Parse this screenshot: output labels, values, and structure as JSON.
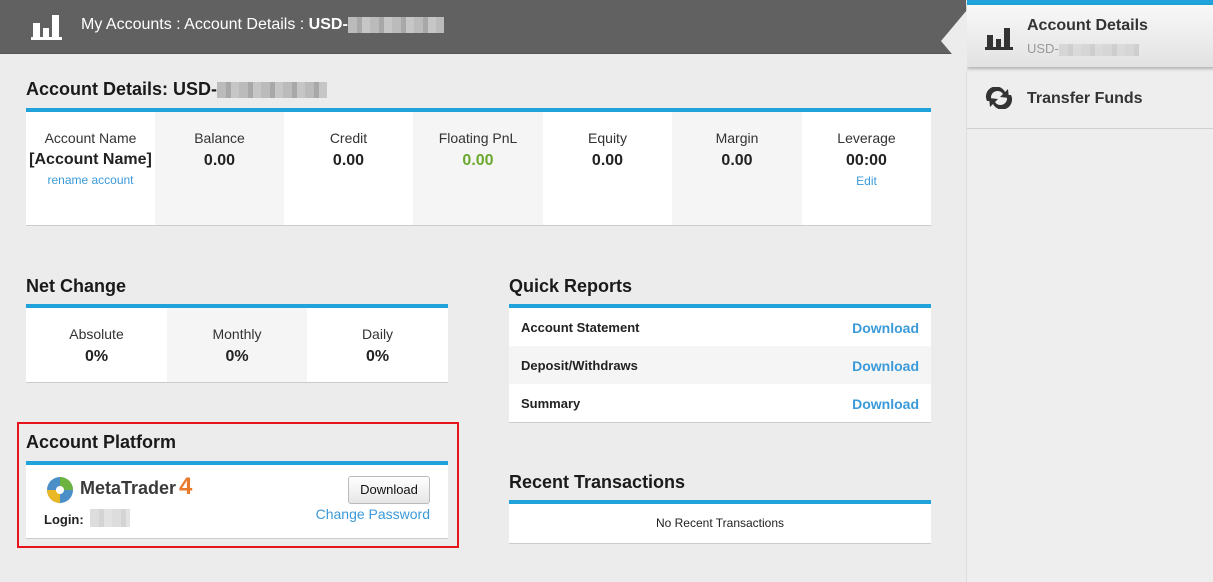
{
  "header": {
    "crumb_prefix": "My Accounts : Account Details : ",
    "crumb_account": "USD-"
  },
  "sidebar": {
    "items": [
      {
        "label": "Account Details",
        "sub": "USD-",
        "icon": "bar-chart-icon",
        "active": true
      },
      {
        "label": "Transfer Funds",
        "icon": "transfer-icon"
      }
    ]
  },
  "account": {
    "title": "Account Details: USD-",
    "stats": [
      {
        "label": "Account Name",
        "value": "[Account Name]",
        "link": "rename account"
      },
      {
        "label": "Balance",
        "value": "0.00"
      },
      {
        "label": "Credit",
        "value": "0.00"
      },
      {
        "label": "Floating PnL",
        "value": "0.00"
      },
      {
        "label": "Equity",
        "value": "0.00"
      },
      {
        "label": "Margin",
        "value": "0.00"
      },
      {
        "label": "Leverage",
        "value": "00:00",
        "link": "Edit"
      }
    ]
  },
  "net_change": {
    "title": "Net Change",
    "items": [
      {
        "label": "Absolute",
        "value": "0%"
      },
      {
        "label": "Monthly",
        "value": "0%"
      },
      {
        "label": "Daily",
        "value": "0%"
      }
    ]
  },
  "quick_reports": {
    "title": "Quick Reports",
    "rows": [
      {
        "name": "Account Statement",
        "action": "Download"
      },
      {
        "name": "Deposit/Withdraws",
        "action": "Download"
      },
      {
        "name": "Summary",
        "action": "Download"
      }
    ]
  },
  "platform": {
    "title": "Account Platform",
    "logo_text": "MetaTrader",
    "logo_num": "4",
    "login_label": "Login:",
    "download": "Download",
    "change_password": "Change Password"
  },
  "recent": {
    "title": "Recent Transactions",
    "empty": "No Recent Transactions"
  },
  "colors": {
    "accent": "#1fa3da",
    "link": "#3a9ad9",
    "positive": "#6aa82e",
    "highlight": "#e8141b"
  }
}
